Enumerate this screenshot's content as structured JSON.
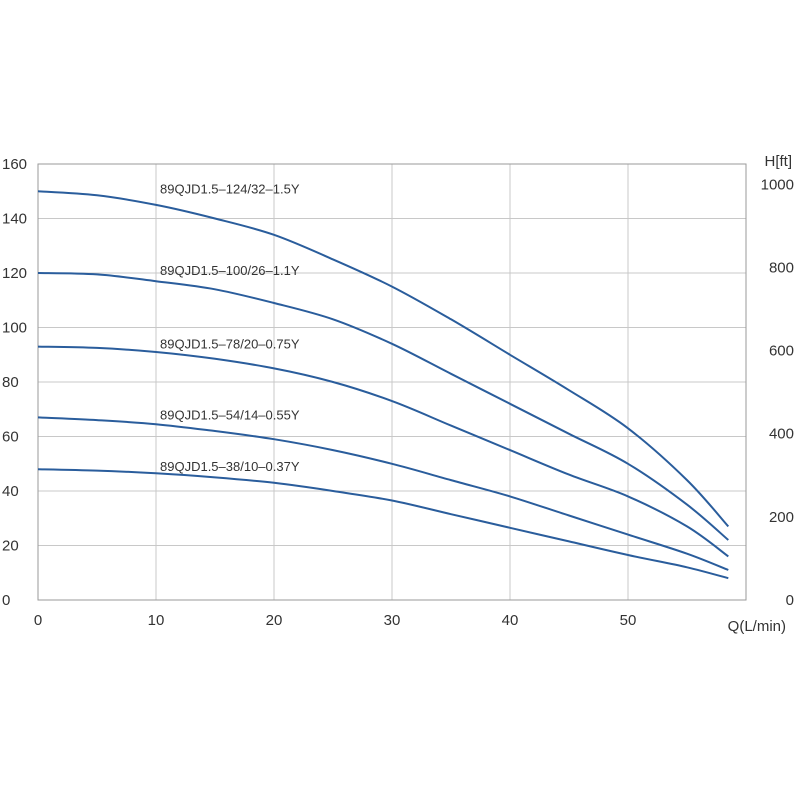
{
  "chart_data": {
    "type": "line",
    "xlabel": "Q(L/min)",
    "ylabel_right": "H[ft]",
    "xlim": [
      0,
      60
    ],
    "ylim": [
      0,
      160
    ],
    "xticks": [
      0,
      10,
      20,
      30,
      40,
      50
    ],
    "yticks": [
      0,
      20,
      40,
      60,
      80,
      100,
      120,
      140,
      160
    ],
    "yticks_right": [
      0,
      200,
      400,
      600,
      800,
      1000
    ],
    "ylim_right": [
      0,
      1049
    ],
    "grid": true,
    "line_color": "#2a5d9c",
    "series": [
      {
        "name": "89QJD1.5–124/32–1.5Y",
        "x": [
          0,
          5,
          10,
          15,
          20,
          25,
          30,
          35,
          40,
          45,
          50,
          55,
          58.5
        ],
        "y": [
          150,
          148.5,
          145,
          140,
          134,
          125,
          115,
          103,
          90,
          77,
          63,
          44,
          27
        ]
      },
      {
        "name": "89QJD1.5–100/26–1.1Y",
        "x": [
          0,
          5,
          10,
          15,
          20,
          25,
          30,
          35,
          40,
          45,
          50,
          55,
          58.5
        ],
        "y": [
          120,
          119.5,
          117,
          114,
          109,
          103,
          94,
          83,
          72,
          61,
          50,
          35,
          22
        ]
      },
      {
        "name": "89QJD1.5–78/20–0.75Y",
        "x": [
          0,
          5,
          10,
          15,
          20,
          25,
          30,
          35,
          40,
          45,
          50,
          55,
          58.5
        ],
        "y": [
          93,
          92.5,
          91,
          88.5,
          85,
          80,
          73,
          64,
          55,
          46,
          38,
          27,
          16
        ]
      },
      {
        "name": "89QJD1.5–54/14–0.55Y",
        "x": [
          0,
          5,
          10,
          15,
          20,
          25,
          30,
          35,
          40,
          45,
          50,
          55,
          58.5
        ],
        "y": [
          67,
          66,
          64.5,
          62,
          59,
          55,
          50,
          44,
          38,
          31,
          24,
          17,
          11
        ]
      },
      {
        "name": "89QJD1.5–38/10–0.37Y",
        "x": [
          0,
          5,
          10,
          15,
          20,
          25,
          30,
          35,
          40,
          45,
          50,
          55,
          58.5
        ],
        "y": [
          48,
          47.5,
          46.5,
          45,
          43,
          40,
          36.5,
          31.5,
          26.5,
          21.5,
          16.5,
          12,
          8
        ]
      }
    ]
  }
}
